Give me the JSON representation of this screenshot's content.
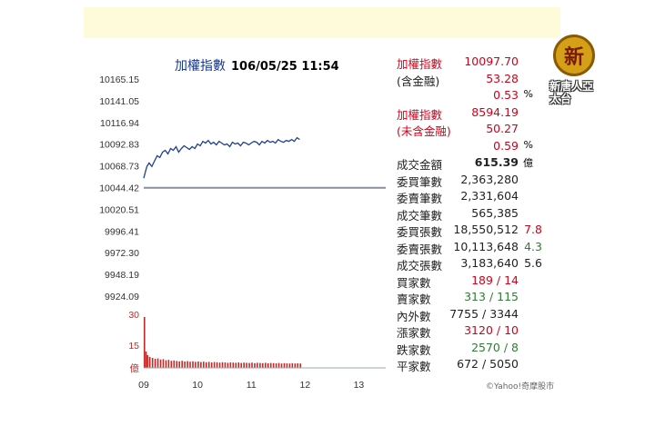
{
  "chart_title": "加權指數",
  "chart_datetime": "106/05/25 11:54",
  "stats": [
    {
      "label": "加權指數",
      "label_color": "red",
      "value": "10097.70",
      "value_color": "red"
    },
    {
      "label": "(含金融)",
      "label_color": "dark",
      "value": "53.28",
      "value_color": "red"
    },
    {
      "label": "",
      "label_color": "dark",
      "value": "0.53",
      "value_color": "red",
      "unit": "%"
    },
    {
      "label": "加權指數",
      "label_color": "red",
      "value": "8594.19",
      "value_color": "red"
    },
    {
      "label": "(未含金融)",
      "label_color": "red",
      "value": "50.27",
      "value_color": "red"
    },
    {
      "label": "",
      "label_color": "dark",
      "value": "0.59",
      "value_color": "red",
      "unit": "%"
    },
    {
      "label": "成交金額",
      "label_color": "dark",
      "value": "615.39",
      "value_color": "dark",
      "bold": true,
      "unit": "億"
    },
    {
      "label": "委買筆數",
      "label_color": "dark",
      "value": "2,363,280",
      "value_color": "dark"
    },
    {
      "label": "委賣筆數",
      "label_color": "dark",
      "value": "2,331,604",
      "value_color": "dark"
    },
    {
      "label": "成交筆數",
      "label_color": "dark",
      "value": "565,385",
      "value_color": "dark"
    },
    {
      "label": "委買張數",
      "label_color": "dark",
      "value": "18,550,512",
      "value_color": "dark",
      "extra": "7.8",
      "extra_color": "red"
    },
    {
      "label": "委賣張數",
      "label_color": "dark",
      "value": "10,113,648",
      "value_color": "dark",
      "extra": "4.3",
      "extra_color": "green"
    },
    {
      "label": "成交張數",
      "label_color": "dark",
      "value": "3,183,640",
      "value_color": "dark",
      "extra": "5.6",
      "extra_color": "dark"
    },
    {
      "label": "買家數",
      "label_color": "dark",
      "value": "189 / 14",
      "value_color": "red"
    },
    {
      "label": "賣家數",
      "label_color": "dark",
      "value": "313 / 115",
      "value_color": "green"
    },
    {
      "label": "內外數",
      "label_color": "dark",
      "value": "7755 / 3344",
      "value_color": "dark"
    },
    {
      "label": "漲家數",
      "label_color": "dark",
      "value": "3120 / 10",
      "value_color": "red"
    },
    {
      "label": "跌家數",
      "label_color": "dark",
      "value": "2570 / 8",
      "value_color": "green"
    },
    {
      "label": "平家數",
      "label_color": "dark",
      "value": "672 / 5050",
      "value_color": "dark"
    }
  ],
  "credit": "©Yahoo!奇摩股市",
  "logo": {
    "seal": "新",
    "text": "新唐人亞太台"
  },
  "colors": {
    "price_line": "#1f3f8f",
    "ref_line": "#8a8fa0",
    "volume": "#c62828",
    "red": "#d0021b",
    "green": "#2e7d32"
  },
  "chart_data": [
    {
      "type": "line",
      "title": "加權指數",
      "y_ticks": [
        "10165.15",
        "10141.05",
        "10116.94",
        "10092.83",
        "10068.73",
        "10044.42",
        "10020.51",
        "9996.41",
        "9972.30",
        "9948.19",
        "9924.09"
      ],
      "ylim": [
        9924.09,
        10165.15
      ],
      "x_ticks": [
        "09",
        "10",
        "11",
        "12",
        "13"
      ],
      "xlim": [
        9.0,
        13.5
      ],
      "reference": 10044.42,
      "x": [
        9.0,
        9.03,
        9.06,
        9.1,
        9.15,
        9.2,
        9.25,
        9.3,
        9.35,
        9.4,
        9.45,
        9.5,
        9.55,
        9.6,
        9.65,
        9.7,
        9.75,
        9.8,
        9.85,
        9.9,
        9.95,
        10.0,
        10.05,
        10.1,
        10.15,
        10.2,
        10.25,
        10.3,
        10.35,
        10.4,
        10.45,
        10.5,
        10.55,
        10.6,
        10.65,
        10.7,
        10.75,
        10.8,
        10.85,
        10.9,
        10.95,
        11.0,
        11.05,
        11.1,
        11.15,
        11.2,
        11.25,
        11.3,
        11.35,
        11.4,
        11.45,
        11.5,
        11.55,
        11.6,
        11.65,
        11.7,
        11.75,
        11.8,
        11.85,
        11.9
      ],
      "values": [
        10055,
        10062,
        10068,
        10072,
        10068,
        10074,
        10080,
        10078,
        10084,
        10086,
        10082,
        10088,
        10086,
        10090,
        10084,
        10088,
        10091,
        10089,
        10087,
        10090,
        10088,
        10093,
        10091,
        10096,
        10094,
        10097,
        10093,
        10095,
        10092,
        10096,
        10094,
        10092,
        10093,
        10090,
        10095,
        10093,
        10094,
        10091,
        10095,
        10094,
        10092,
        10094,
        10096,
        10095,
        10092,
        10096,
        10094,
        10097,
        10095,
        10096,
        10094,
        10098,
        10096,
        10095,
        10097,
        10096,
        10098,
        10096,
        10100,
        10098
      ]
    },
    {
      "type": "bar",
      "title": "volume",
      "y_ticks": [
        "30",
        "15",
        "億"
      ],
      "ylim": [
        0,
        30
      ],
      "x_ticks": [
        "09",
        "10",
        "11",
        "12",
        "13"
      ],
      "xlim": [
        9.0,
        13.5
      ],
      "x": [
        9.0,
        9.03,
        9.06,
        9.1,
        9.15,
        9.2,
        9.25,
        9.3,
        9.35,
        9.4,
        9.45,
        9.5,
        9.55,
        9.6,
        9.65,
        9.7,
        9.75,
        9.8,
        9.85,
        9.9,
        9.95,
        10.0,
        10.05,
        10.1,
        10.15,
        10.2,
        10.25,
        10.3,
        10.35,
        10.4,
        10.45,
        10.5,
        10.55,
        10.6,
        10.65,
        10.7,
        10.75,
        10.8,
        10.85,
        10.9,
        10.95,
        11.0,
        11.05,
        11.1,
        11.15,
        11.2,
        11.25,
        11.3,
        11.35,
        11.4,
        11.45,
        11.5,
        11.55,
        11.6,
        11.65,
        11.7,
        11.75,
        11.8,
        11.85,
        11.9
      ],
      "values": [
        28,
        9,
        7,
        6,
        5.5,
        5,
        5.2,
        4.6,
        4.8,
        4.2,
        4.4,
        3.9,
        4.1,
        3.8,
        3.6,
        3.9,
        3.5,
        3.7,
        3.4,
        3.6,
        3.3,
        3.5,
        3.2,
        3.4,
        3.1,
        3.3,
        3.0,
        3.2,
        3.1,
        2.9,
        3.1,
        3.0,
        2.8,
        3.0,
        2.9,
        2.8,
        3.0,
        2.7,
        2.9,
        2.8,
        2.7,
        2.9,
        2.6,
        2.8,
        2.7,
        2.6,
        2.8,
        2.5,
        2.7,
        2.6,
        2.5,
        2.7,
        2.4,
        2.6,
        2.5,
        2.4,
        2.6,
        2.4,
        2.5,
        2.4
      ]
    }
  ]
}
